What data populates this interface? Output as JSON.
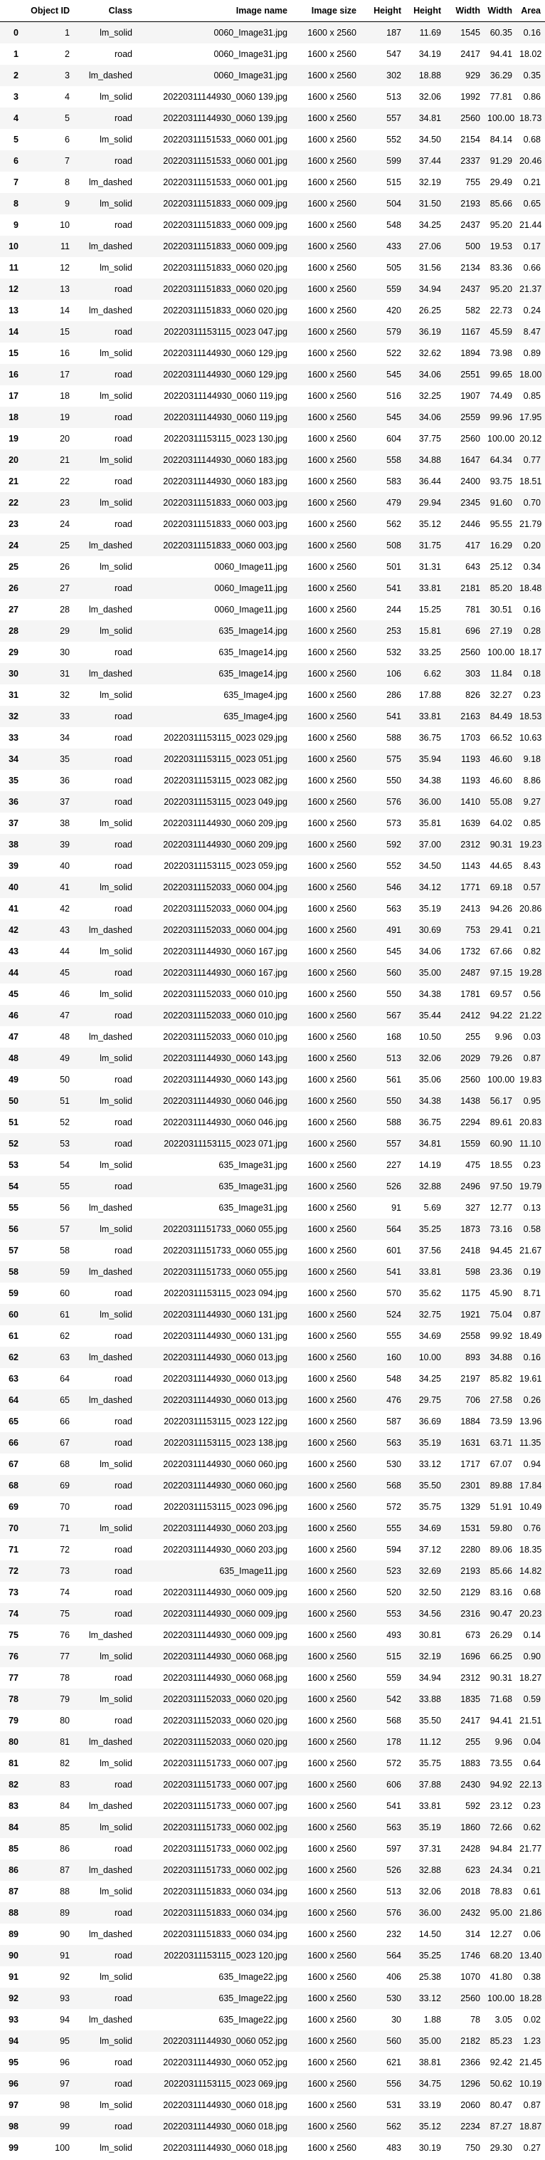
{
  "columns": [
    "",
    "Object ID",
    "Class",
    "Image name",
    "Image size",
    "Height",
    "Height",
    "Width",
    "Width",
    "Area"
  ],
  "rows": [
    [
      "0",
      "1",
      "lm_solid",
      "0060_Image31.jpg",
      "1600 x 2560",
      "187",
      "11.69",
      "1545",
      "60.35",
      "0.16"
    ],
    [
      "1",
      "2",
      "road",
      "0060_Image31.jpg",
      "1600 x 2560",
      "547",
      "34.19",
      "2417",
      "94.41",
      "18.02"
    ],
    [
      "2",
      "3",
      "lm_dashed",
      "0060_Image31.jpg",
      "1600 x 2560",
      "302",
      "18.88",
      "929",
      "36.29",
      "0.35"
    ],
    [
      "3",
      "4",
      "lm_solid",
      "20220311144930_0060 139.jpg",
      "1600 x 2560",
      "513",
      "32.06",
      "1992",
      "77.81",
      "0.86"
    ],
    [
      "4",
      "5",
      "road",
      "20220311144930_0060 139.jpg",
      "1600 x 2560",
      "557",
      "34.81",
      "2560",
      "100.00",
      "18.73"
    ],
    [
      "5",
      "6",
      "lm_solid",
      "20220311151533_0060 001.jpg",
      "1600 x 2560",
      "552",
      "34.50",
      "2154",
      "84.14",
      "0.68"
    ],
    [
      "6",
      "7",
      "road",
      "20220311151533_0060 001.jpg",
      "1600 x 2560",
      "599",
      "37.44",
      "2337",
      "91.29",
      "20.46"
    ],
    [
      "7",
      "8",
      "lm_dashed",
      "20220311151533_0060 001.jpg",
      "1600 x 2560",
      "515",
      "32.19",
      "755",
      "29.49",
      "0.21"
    ],
    [
      "8",
      "9",
      "lm_solid",
      "20220311151833_0060 009.jpg",
      "1600 x 2560",
      "504",
      "31.50",
      "2193",
      "85.66",
      "0.65"
    ],
    [
      "9",
      "10",
      "road",
      "20220311151833_0060 009.jpg",
      "1600 x 2560",
      "548",
      "34.25",
      "2437",
      "95.20",
      "21.44"
    ],
    [
      "10",
      "11",
      "lm_dashed",
      "20220311151833_0060 009.jpg",
      "1600 x 2560",
      "433",
      "27.06",
      "500",
      "19.53",
      "0.17"
    ],
    [
      "11",
      "12",
      "lm_solid",
      "20220311151833_0060 020.jpg",
      "1600 x 2560",
      "505",
      "31.56",
      "2134",
      "83.36",
      "0.66"
    ],
    [
      "12",
      "13",
      "road",
      "20220311151833_0060 020.jpg",
      "1600 x 2560",
      "559",
      "34.94",
      "2437",
      "95.20",
      "21.37"
    ],
    [
      "13",
      "14",
      "lm_dashed",
      "20220311151833_0060 020.jpg",
      "1600 x 2560",
      "420",
      "26.25",
      "582",
      "22.73",
      "0.24"
    ],
    [
      "14",
      "15",
      "road",
      "20220311153115_0023 047.jpg",
      "1600 x 2560",
      "579",
      "36.19",
      "1167",
      "45.59",
      "8.47"
    ],
    [
      "15",
      "16",
      "lm_solid",
      "20220311144930_0060 129.jpg",
      "1600 x 2560",
      "522",
      "32.62",
      "1894",
      "73.98",
      "0.89"
    ],
    [
      "16",
      "17",
      "road",
      "20220311144930_0060 129.jpg",
      "1600 x 2560",
      "545",
      "34.06",
      "2551",
      "99.65",
      "18.00"
    ],
    [
      "17",
      "18",
      "lm_solid",
      "20220311144930_0060 119.jpg",
      "1600 x 2560",
      "516",
      "32.25",
      "1907",
      "74.49",
      "0.85"
    ],
    [
      "18",
      "19",
      "road",
      "20220311144930_0060 119.jpg",
      "1600 x 2560",
      "545",
      "34.06",
      "2559",
      "99.96",
      "17.95"
    ],
    [
      "19",
      "20",
      "road",
      "20220311153115_0023 130.jpg",
      "1600 x 2560",
      "604",
      "37.75",
      "2560",
      "100.00",
      "20.12"
    ],
    [
      "20",
      "21",
      "lm_solid",
      "20220311144930_0060 183.jpg",
      "1600 x 2560",
      "558",
      "34.88",
      "1647",
      "64.34",
      "0.77"
    ],
    [
      "21",
      "22",
      "road",
      "20220311144930_0060 183.jpg",
      "1600 x 2560",
      "583",
      "36.44",
      "2400",
      "93.75",
      "18.51"
    ],
    [
      "22",
      "23",
      "lm_solid",
      "20220311151833_0060 003.jpg",
      "1600 x 2560",
      "479",
      "29.94",
      "2345",
      "91.60",
      "0.70"
    ],
    [
      "23",
      "24",
      "road",
      "20220311151833_0060 003.jpg",
      "1600 x 2560",
      "562",
      "35.12",
      "2446",
      "95.55",
      "21.79"
    ],
    [
      "24",
      "25",
      "lm_dashed",
      "20220311151833_0060 003.jpg",
      "1600 x 2560",
      "508",
      "31.75",
      "417",
      "16.29",
      "0.20"
    ],
    [
      "25",
      "26",
      "lm_solid",
      "0060_Image11.jpg",
      "1600 x 2560",
      "501",
      "31.31",
      "643",
      "25.12",
      "0.34"
    ],
    [
      "26",
      "27",
      "road",
      "0060_Image11.jpg",
      "1600 x 2560",
      "541",
      "33.81",
      "2181",
      "85.20",
      "18.48"
    ],
    [
      "27",
      "28",
      "lm_dashed",
      "0060_Image11.jpg",
      "1600 x 2560",
      "244",
      "15.25",
      "781",
      "30.51",
      "0.16"
    ],
    [
      "28",
      "29",
      "lm_solid",
      "635_Image14.jpg",
      "1600 x 2560",
      "253",
      "15.81",
      "696",
      "27.19",
      "0.28"
    ],
    [
      "29",
      "30",
      "road",
      "635_Image14.jpg",
      "1600 x 2560",
      "532",
      "33.25",
      "2560",
      "100.00",
      "18.17"
    ],
    [
      "30",
      "31",
      "lm_dashed",
      "635_Image14.jpg",
      "1600 x 2560",
      "106",
      "6.62",
      "303",
      "11.84",
      "0.18"
    ],
    [
      "31",
      "32",
      "lm_solid",
      "635_Image4.jpg",
      "1600 x 2560",
      "286",
      "17.88",
      "826",
      "32.27",
      "0.23"
    ],
    [
      "32",
      "33",
      "road",
      "635_Image4.jpg",
      "1600 x 2560",
      "541",
      "33.81",
      "2163",
      "84.49",
      "18.53"
    ],
    [
      "33",
      "34",
      "road",
      "20220311153115_0023 029.jpg",
      "1600 x 2560",
      "588",
      "36.75",
      "1703",
      "66.52",
      "10.63"
    ],
    [
      "34",
      "35",
      "road",
      "20220311153115_0023 051.jpg",
      "1600 x 2560",
      "575",
      "35.94",
      "1193",
      "46.60",
      "9.18"
    ],
    [
      "35",
      "36",
      "road",
      "20220311153115_0023 082.jpg",
      "1600 x 2560",
      "550",
      "34.38",
      "1193",
      "46.60",
      "8.86"
    ],
    [
      "36",
      "37",
      "road",
      "20220311153115_0023 049.jpg",
      "1600 x 2560",
      "576",
      "36.00",
      "1410",
      "55.08",
      "9.27"
    ],
    [
      "37",
      "38",
      "lm_solid",
      "20220311144930_0060 209.jpg",
      "1600 x 2560",
      "573",
      "35.81",
      "1639",
      "64.02",
      "0.85"
    ],
    [
      "38",
      "39",
      "road",
      "20220311144930_0060 209.jpg",
      "1600 x 2560",
      "592",
      "37.00",
      "2312",
      "90.31",
      "19.23"
    ],
    [
      "39",
      "40",
      "road",
      "20220311153115_0023 059.jpg",
      "1600 x 2560",
      "552",
      "34.50",
      "1143",
      "44.65",
      "8.43"
    ],
    [
      "40",
      "41",
      "lm_solid",
      "20220311152033_0060 004.jpg",
      "1600 x 2560",
      "546",
      "34.12",
      "1771",
      "69.18",
      "0.57"
    ],
    [
      "41",
      "42",
      "road",
      "20220311152033_0060 004.jpg",
      "1600 x 2560",
      "563",
      "35.19",
      "2413",
      "94.26",
      "20.86"
    ],
    [
      "42",
      "43",
      "lm_dashed",
      "20220311152033_0060 004.jpg",
      "1600 x 2560",
      "491",
      "30.69",
      "753",
      "29.41",
      "0.21"
    ],
    [
      "43",
      "44",
      "lm_solid",
      "20220311144930_0060 167.jpg",
      "1600 x 2560",
      "545",
      "34.06",
      "1732",
      "67.66",
      "0.82"
    ],
    [
      "44",
      "45",
      "road",
      "20220311144930_0060 167.jpg",
      "1600 x 2560",
      "560",
      "35.00",
      "2487",
      "97.15",
      "19.28"
    ],
    [
      "45",
      "46",
      "lm_solid",
      "20220311152033_0060 010.jpg",
      "1600 x 2560",
      "550",
      "34.38",
      "1781",
      "69.57",
      "0.56"
    ],
    [
      "46",
      "47",
      "road",
      "20220311152033_0060 010.jpg",
      "1600 x 2560",
      "567",
      "35.44",
      "2412",
      "94.22",
      "21.22"
    ],
    [
      "47",
      "48",
      "lm_dashed",
      "20220311152033_0060 010.jpg",
      "1600 x 2560",
      "168",
      "10.50",
      "255",
      "9.96",
      "0.03"
    ],
    [
      "48",
      "49",
      "lm_solid",
      "20220311144930_0060 143.jpg",
      "1600 x 2560",
      "513",
      "32.06",
      "2029",
      "79.26",
      "0.87"
    ],
    [
      "49",
      "50",
      "road",
      "20220311144930_0060 143.jpg",
      "1600 x 2560",
      "561",
      "35.06",
      "2560",
      "100.00",
      "19.83"
    ],
    [
      "50",
      "51",
      "lm_solid",
      "20220311144930_0060 046.jpg",
      "1600 x 2560",
      "550",
      "34.38",
      "1438",
      "56.17",
      "0.95"
    ],
    [
      "51",
      "52",
      "road",
      "20220311144930_0060 046.jpg",
      "1600 x 2560",
      "588",
      "36.75",
      "2294",
      "89.61",
      "20.83"
    ],
    [
      "52",
      "53",
      "road",
      "20220311153115_0023 071.jpg",
      "1600 x 2560",
      "557",
      "34.81",
      "1559",
      "60.90",
      "11.10"
    ],
    [
      "53",
      "54",
      "lm_solid",
      "635_Image31.jpg",
      "1600 x 2560",
      "227",
      "14.19",
      "475",
      "18.55",
      "0.23"
    ],
    [
      "54",
      "55",
      "road",
      "635_Image31.jpg",
      "1600 x 2560",
      "526",
      "32.88",
      "2496",
      "97.50",
      "19.79"
    ],
    [
      "55",
      "56",
      "lm_dashed",
      "635_Image31.jpg",
      "1600 x 2560",
      "91",
      "5.69",
      "327",
      "12.77",
      "0.13"
    ],
    [
      "56",
      "57",
      "lm_solid",
      "20220311151733_0060 055.jpg",
      "1600 x 2560",
      "564",
      "35.25",
      "1873",
      "73.16",
      "0.58"
    ],
    [
      "57",
      "58",
      "road",
      "20220311151733_0060 055.jpg",
      "1600 x 2560",
      "601",
      "37.56",
      "2418",
      "94.45",
      "21.67"
    ],
    [
      "58",
      "59",
      "lm_dashed",
      "20220311151733_0060 055.jpg",
      "1600 x 2560",
      "541",
      "33.81",
      "598",
      "23.36",
      "0.19"
    ],
    [
      "59",
      "60",
      "road",
      "20220311153115_0023 094.jpg",
      "1600 x 2560",
      "570",
      "35.62",
      "1175",
      "45.90",
      "8.71"
    ],
    [
      "60",
      "61",
      "lm_solid",
      "20220311144930_0060 131.jpg",
      "1600 x 2560",
      "524",
      "32.75",
      "1921",
      "75.04",
      "0.87"
    ],
    [
      "61",
      "62",
      "road",
      "20220311144930_0060 131.jpg",
      "1600 x 2560",
      "555",
      "34.69",
      "2558",
      "99.92",
      "18.49"
    ],
    [
      "62",
      "63",
      "lm_dashed",
      "20220311144930_0060 013.jpg",
      "1600 x 2560",
      "160",
      "10.00",
      "893",
      "34.88",
      "0.16"
    ],
    [
      "63",
      "64",
      "road",
      "20220311144930_0060 013.jpg",
      "1600 x 2560",
      "548",
      "34.25",
      "2197",
      "85.82",
      "19.61"
    ],
    [
      "64",
      "65",
      "lm_dashed",
      "20220311144930_0060 013.jpg",
      "1600 x 2560",
      "476",
      "29.75",
      "706",
      "27.58",
      "0.26"
    ],
    [
      "65",
      "66",
      "road",
      "20220311153115_0023 122.jpg",
      "1600 x 2560",
      "587",
      "36.69",
      "1884",
      "73.59",
      "13.96"
    ],
    [
      "66",
      "67",
      "road",
      "20220311153115_0023 138.jpg",
      "1600 x 2560",
      "563",
      "35.19",
      "1631",
      "63.71",
      "11.35"
    ],
    [
      "67",
      "68",
      "lm_solid",
      "20220311144930_0060 060.jpg",
      "1600 x 2560",
      "530",
      "33.12",
      "1717",
      "67.07",
      "0.94"
    ],
    [
      "68",
      "69",
      "road",
      "20220311144930_0060 060.jpg",
      "1600 x 2560",
      "568",
      "35.50",
      "2301",
      "89.88",
      "17.84"
    ],
    [
      "69",
      "70",
      "road",
      "20220311153115_0023 096.jpg",
      "1600 x 2560",
      "572",
      "35.75",
      "1329",
      "51.91",
      "10.49"
    ],
    [
      "70",
      "71",
      "lm_solid",
      "20220311144930_0060 203.jpg",
      "1600 x 2560",
      "555",
      "34.69",
      "1531",
      "59.80",
      "0.76"
    ],
    [
      "71",
      "72",
      "road",
      "20220311144930_0060 203.jpg",
      "1600 x 2560",
      "594",
      "37.12",
      "2280",
      "89.06",
      "18.35"
    ],
    [
      "72",
      "73",
      "road",
      "635_Image11.jpg",
      "1600 x 2560",
      "523",
      "32.69",
      "2193",
      "85.66",
      "14.82"
    ],
    [
      "73",
      "74",
      "road",
      "20220311144930_0060 009.jpg",
      "1600 x 2560",
      "520",
      "32.50",
      "2129",
      "83.16",
      "0.68"
    ],
    [
      "74",
      "75",
      "road",
      "20220311144930_0060 009.jpg",
      "1600 x 2560",
      "553",
      "34.56",
      "2316",
      "90.47",
      "20.23"
    ],
    [
      "75",
      "76",
      "lm_dashed",
      "20220311144930_0060 009.jpg",
      "1600 x 2560",
      "493",
      "30.81",
      "673",
      "26.29",
      "0.14"
    ],
    [
      "76",
      "77",
      "lm_solid",
      "20220311144930_0060 068.jpg",
      "1600 x 2560",
      "515",
      "32.19",
      "1696",
      "66.25",
      "0.90"
    ],
    [
      "77",
      "78",
      "road",
      "20220311144930_0060 068.jpg",
      "1600 x 2560",
      "559",
      "34.94",
      "2312",
      "90.31",
      "18.27"
    ],
    [
      "78",
      "79",
      "lm_solid",
      "20220311152033_0060 020.jpg",
      "1600 x 2560",
      "542",
      "33.88",
      "1835",
      "71.68",
      "0.59"
    ],
    [
      "79",
      "80",
      "road",
      "20220311152033_0060 020.jpg",
      "1600 x 2560",
      "568",
      "35.50",
      "2417",
      "94.41",
      "21.51"
    ],
    [
      "80",
      "81",
      "lm_dashed",
      "20220311152033_0060 020.jpg",
      "1600 x 2560",
      "178",
      "11.12",
      "255",
      "9.96",
      "0.04"
    ],
    [
      "81",
      "82",
      "lm_solid",
      "20220311151733_0060 007.jpg",
      "1600 x 2560",
      "572",
      "35.75",
      "1883",
      "73.55",
      "0.64"
    ],
    [
      "82",
      "83",
      "road",
      "20220311151733_0060 007.jpg",
      "1600 x 2560",
      "606",
      "37.88",
      "2430",
      "94.92",
      "22.13"
    ],
    [
      "83",
      "84",
      "lm_dashed",
      "20220311151733_0060 007.jpg",
      "1600 x 2560",
      "541",
      "33.81",
      "592",
      "23.12",
      "0.23"
    ],
    [
      "84",
      "85",
      "lm_solid",
      "20220311151733_0060 002.jpg",
      "1600 x 2560",
      "563",
      "35.19",
      "1860",
      "72.66",
      "0.62"
    ],
    [
      "85",
      "86",
      "road",
      "20220311151733_0060 002.jpg",
      "1600 x 2560",
      "597",
      "37.31",
      "2428",
      "94.84",
      "21.77"
    ],
    [
      "86",
      "87",
      "lm_dashed",
      "20220311151733_0060 002.jpg",
      "1600 x 2560",
      "526",
      "32.88",
      "623",
      "24.34",
      "0.21"
    ],
    [
      "87",
      "88",
      "lm_solid",
      "20220311151833_0060 034.jpg",
      "1600 x 2560",
      "513",
      "32.06",
      "2018",
      "78.83",
      "0.61"
    ],
    [
      "88",
      "89",
      "road",
      "20220311151833_0060 034.jpg",
      "1600 x 2560",
      "576",
      "36.00",
      "2432",
      "95.00",
      "21.86"
    ],
    [
      "89",
      "90",
      "lm_dashed",
      "20220311151833_0060 034.jpg",
      "1600 x 2560",
      "232",
      "14.50",
      "314",
      "12.27",
      "0.06"
    ],
    [
      "90",
      "91",
      "road",
      "20220311153115_0023 120.jpg",
      "1600 x 2560",
      "564",
      "35.25",
      "1746",
      "68.20",
      "13.40"
    ],
    [
      "91",
      "92",
      "lm_solid",
      "635_Image22.jpg",
      "1600 x 2560",
      "406",
      "25.38",
      "1070",
      "41.80",
      "0.38"
    ],
    [
      "92",
      "93",
      "road",
      "635_Image22.jpg",
      "1600 x 2560",
      "530",
      "33.12",
      "2560",
      "100.00",
      "18.28"
    ],
    [
      "93",
      "94",
      "lm_dashed",
      "635_Image22.jpg",
      "1600 x 2560",
      "30",
      "1.88",
      "78",
      "3.05",
      "0.02"
    ],
    [
      "94",
      "95",
      "lm_solid",
      "20220311144930_0060 052.jpg",
      "1600 x 2560",
      "560",
      "35.00",
      "2182",
      "85.23",
      "1.23"
    ],
    [
      "95",
      "96",
      "road",
      "20220311144930_0060 052.jpg",
      "1600 x 2560",
      "621",
      "38.81",
      "2366",
      "92.42",
      "21.45"
    ],
    [
      "96",
      "97",
      "road",
      "20220311153115_0023 069.jpg",
      "1600 x 2560",
      "556",
      "34.75",
      "1296",
      "50.62",
      "10.19"
    ],
    [
      "97",
      "98",
      "lm_solid",
      "20220311144930_0060 018.jpg",
      "1600 x 2560",
      "531",
      "33.19",
      "2060",
      "80.47",
      "0.87"
    ],
    [
      "98",
      "99",
      "road",
      "20220311144930_0060 018.jpg",
      "1600 x 2560",
      "562",
      "35.12",
      "2234",
      "87.27",
      "18.87"
    ],
    [
      "99",
      "100",
      "lm_solid",
      "20220311144930_0060 018.jpg",
      "1600 x 2560",
      "483",
      "30.19",
      "750",
      "29.30",
      "0.27"
    ]
  ]
}
